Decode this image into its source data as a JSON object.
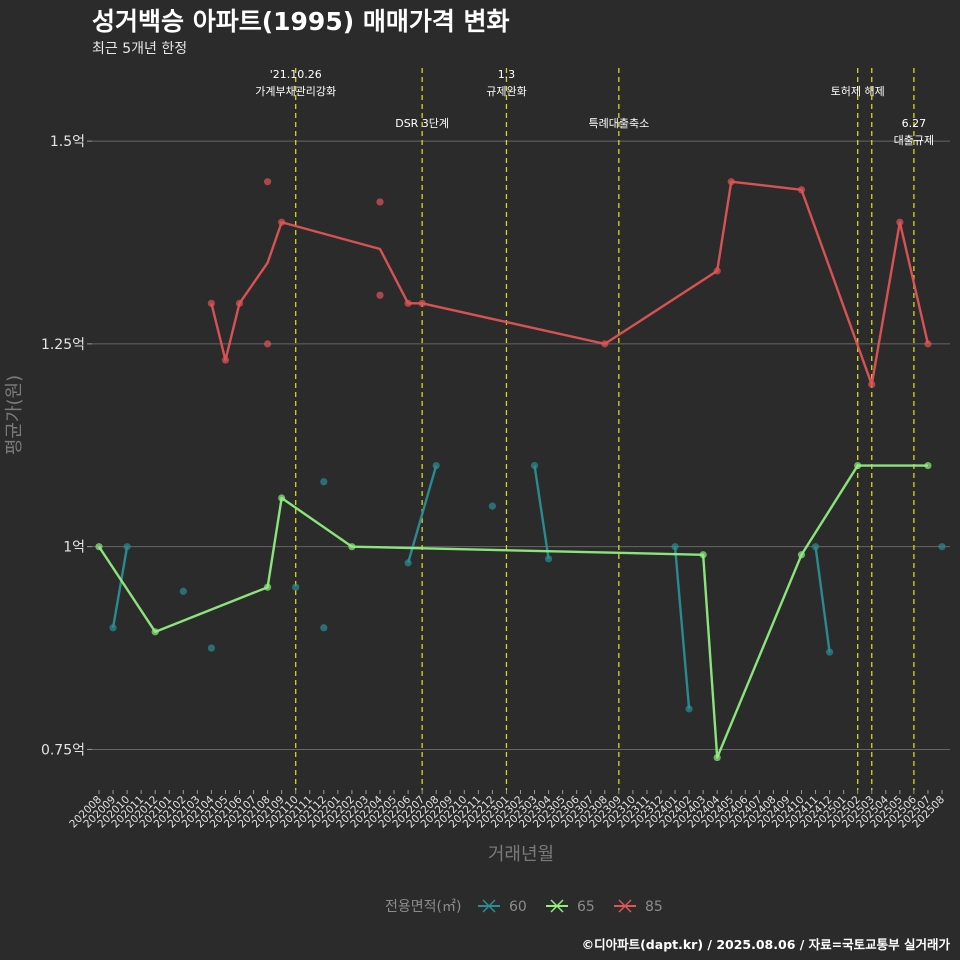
{
  "chart_data": {
    "type": "line",
    "title": "성거백승 아파트(1995) 매매가격 변화",
    "subtitle": "최근 5개년 한정",
    "xlabel": "거래년월",
    "ylabel": "평균가(원)",
    "ylim": [
      0.7,
      1.6
    ],
    "yticks": [
      {
        "value": 0.75,
        "label": "0.75억"
      },
      {
        "value": 1.0,
        "label": "1억"
      },
      {
        "value": 1.25,
        "label": "1.25억"
      },
      {
        "value": 1.5,
        "label": "1.5억"
      }
    ],
    "categories": [
      "202008",
      "202009",
      "202010",
      "202011",
      "202012",
      "202101",
      "202102",
      "202103",
      "202104",
      "202105",
      "202106",
      "202107",
      "202108",
      "202109",
      "202110",
      "202111",
      "202112",
      "202201",
      "202202",
      "202203",
      "202204",
      "202205",
      "202206",
      "202207",
      "202208",
      "202209",
      "202210",
      "202211",
      "202212",
      "202301",
      "202302",
      "202303",
      "202304",
      "202305",
      "202306",
      "202307",
      "202308",
      "202309",
      "202310",
      "202311",
      "202312",
      "202401",
      "202402",
      "202403",
      "202404",
      "202405",
      "202406",
      "202407",
      "202408",
      "202409",
      "202410",
      "202411",
      "202412",
      "202501",
      "202502",
      "202503",
      "202504",
      "202505",
      "202506",
      "202507",
      "202508"
    ],
    "series": [
      {
        "name": "60",
        "color": "#2a8f94",
        "lines": [
          [
            [
              "202009",
              0.9
            ],
            [
              "202010",
              1.0
            ]
          ],
          [
            [
              "202206",
              0.98
            ],
            [
              "202208",
              1.1
            ]
          ],
          [
            [
              "202303",
              1.1
            ],
            [
              "202304",
              0.985
            ]
          ],
          [
            [
              "202401",
              1.0
            ],
            [
              "202402",
              0.8
            ]
          ],
          [
            [
              "202411",
              1.0
            ],
            [
              "202412",
              0.87
            ]
          ]
        ],
        "points": [
          [
            "202009",
            0.9
          ],
          [
            "202010",
            1.0
          ],
          [
            "202102",
            0.945
          ],
          [
            "202104",
            0.875
          ],
          [
            "202110",
            0.95
          ],
          [
            "202112",
            1.08
          ],
          [
            "202112",
            0.9
          ],
          [
            "202206",
            0.98
          ],
          [
            "202208",
            1.1
          ],
          [
            "202212",
            1.05
          ],
          [
            "202303",
            1.1
          ],
          [
            "202304",
            0.985
          ],
          [
            "202401",
            1.0
          ],
          [
            "202402",
            0.8
          ],
          [
            "202411",
            1.0
          ],
          [
            "202412",
            0.87
          ],
          [
            "202508",
            1.0
          ]
        ]
      },
      {
        "name": "65",
        "color": "#90ee80",
        "lines": [
          [
            [
              "202008",
              1.0
            ],
            [
              "202012",
              0.895
            ],
            [
              "202108",
              0.95
            ],
            [
              "202109",
              1.06
            ],
            [
              "202202",
              1.0
            ],
            [
              "202403",
              0.99
            ],
            [
              "202404",
              0.74
            ],
            [
              "202410",
              0.99
            ],
            [
              "202502",
              1.1
            ],
            [
              "202507",
              1.1
            ]
          ]
        ],
        "points": [
          [
            "202008",
            1.0
          ],
          [
            "202012",
            0.895
          ],
          [
            "202108",
            0.95
          ],
          [
            "202109",
            1.06
          ],
          [
            "202202",
            1.0
          ],
          [
            "202403",
            0.99
          ],
          [
            "202404",
            0.74
          ],
          [
            "202410",
            0.99
          ],
          [
            "202502",
            1.1
          ],
          [
            "202507",
            1.1
          ]
        ]
      },
      {
        "name": "85",
        "color": "#e05555",
        "lines": [
          [
            [
              "202104",
              1.3
            ],
            [
              "202105",
              1.23
            ],
            [
              "202106",
              1.3
            ],
            [
              "202108",
              1.35
            ],
            [
              "202109",
              1.4
            ],
            [
              "202204",
              1.367
            ],
            [
              "202206",
              1.3
            ],
            [
              "202207",
              1.3
            ],
            [
              "202308",
              1.25
            ],
            [
              "202404",
              1.34
            ],
            [
              "202405",
              1.45
            ],
            [
              "202410",
              1.44
            ],
            [
              "202503",
              1.2
            ],
            [
              "202505",
              1.4
            ],
            [
              "202507",
              1.25
            ]
          ]
        ],
        "points": [
          [
            "202104",
            1.3
          ],
          [
            "202105",
            1.23
          ],
          [
            "202106",
            1.3
          ],
          [
            "202108",
            1.45
          ],
          [
            "202108",
            1.25
          ],
          [
            "202109",
            1.4
          ],
          [
            "202204",
            1.425
          ],
          [
            "202204",
            1.31
          ],
          [
            "202206",
            1.3
          ],
          [
            "202207",
            1.3
          ],
          [
            "202308",
            1.25
          ],
          [
            "202404",
            1.34
          ],
          [
            "202405",
            1.45
          ],
          [
            "202410",
            1.44
          ],
          [
            "202503",
            1.2
          ],
          [
            "202505",
            1.4
          ],
          [
            "202507",
            1.25
          ]
        ]
      }
    ],
    "annotations": [
      {
        "x": "202110",
        "lines": [
          "'21.10.26",
          "가계부채관리강화"
        ],
        "row": 0
      },
      {
        "x": "202207",
        "lines": [
          "DSR 3단계"
        ],
        "row": 1
      },
      {
        "x": "202301",
        "lines": [
          "1.3",
          "규제완화"
        ],
        "row": 0
      },
      {
        "x": "202309",
        "lines": [
          "특례대출축소"
        ],
        "row": 1
      },
      {
        "x": "202502",
        "lines": [
          "토허제 해제"
        ],
        "row": 0
      },
      {
        "x": "202503",
        "lines": [],
        "row": 0
      },
      {
        "x": "202506",
        "lines": [
          "6.27",
          "대출규제"
        ],
        "row": 1
      }
    ],
    "legend": {
      "title": "전용면적(㎡)",
      "position": "bottom"
    },
    "grid": true
  },
  "credit": "©디아파트(dapt.kr) / 2025.08.06 / 자료=국토교통부 실거래가"
}
